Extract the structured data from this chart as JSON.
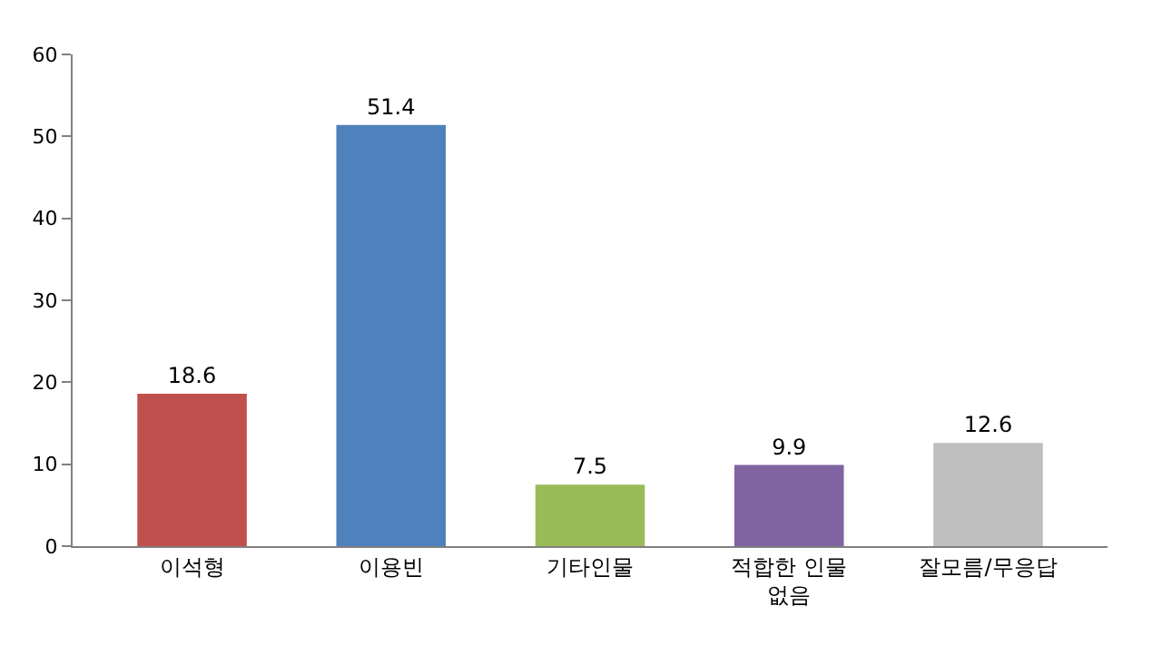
{
  "chart_data": {
    "type": "bar",
    "categories": [
      "이석형",
      "이용빈",
      "기타인물",
      "적합한 인물\n없음",
      "잘모름/무응답"
    ],
    "values": [
      18.6,
      51.4,
      7.5,
      9.9,
      12.6
    ],
    "colors": [
      "#c0504d",
      "#4f81bd",
      "#9bbb59",
      "#8064a2",
      "#bfbfbf"
    ],
    "ylim": [
      0,
      60
    ],
    "yticks": [
      0,
      10,
      20,
      30,
      40,
      50,
      60
    ],
    "data_labels": true,
    "grid": false
  }
}
